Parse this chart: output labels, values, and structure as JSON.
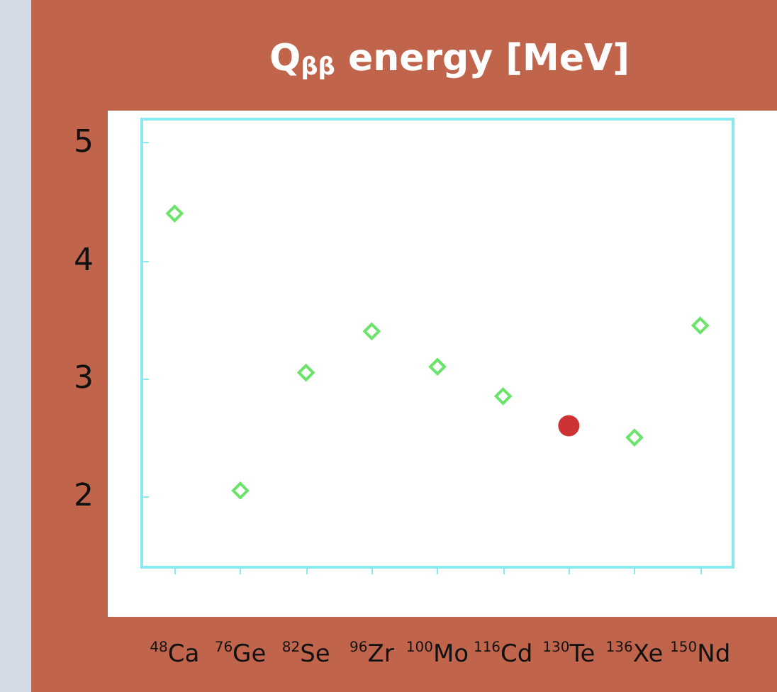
{
  "chart_data": {
    "type": "scatter",
    "title": "Q$_{ββ}$ energy [MeV]",
    "categories": [
      "$^{48}$Ca",
      "$^{76}$Ge",
      "$^{82}$Se",
      "$^{96}$Zr",
      "$^{100}$Mo",
      "$^{116}$Cd",
      "$^{130}$Te",
      "$^{136}$Xe",
      "$^{150}$Nd"
    ],
    "series": [
      {
        "color": "#44dd44",
        "marker": "diamond",
        "values": [
          4.4,
          2.05,
          3.05,
          3.4,
          3.1,
          2.85,
          null,
          2.5,
          3.45
        ]
      },
      {
        "color": "#c00000",
        "marker": "circle",
        "values": [
          null,
          null,
          null,
          null,
          null,
          null,
          2.6,
          null,
          null
        ]
      }
    ],
    "ylim": [
      1.4,
      5.2
    ],
    "yticks": [
      2,
      3,
      4,
      5
    ]
  }
}
